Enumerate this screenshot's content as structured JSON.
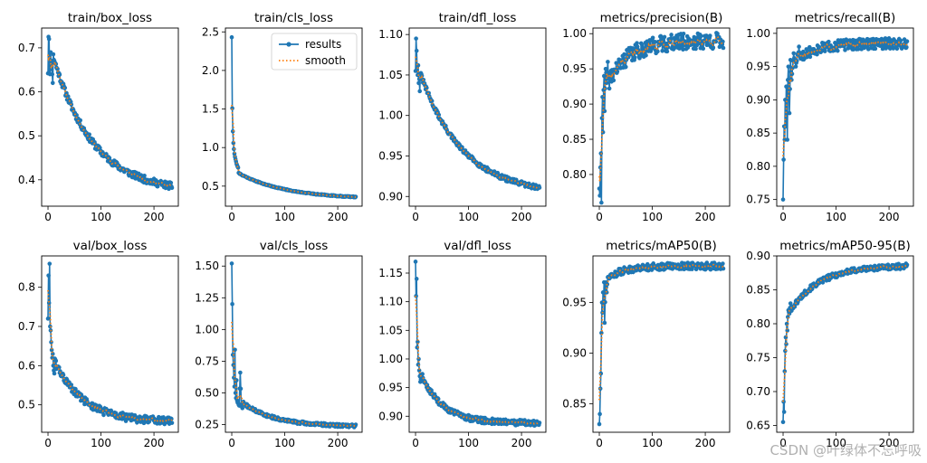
{
  "legend": {
    "results": "results",
    "smooth": "smooth"
  },
  "watermark": "CSDN @叶绿体不忘呼吸",
  "colors": {
    "results": "#1f77b4",
    "smooth": "#ff7f0e"
  },
  "chart_data": [
    {
      "type": "line",
      "title": "train/box_loss",
      "xlim": [
        -12,
        246
      ],
      "ylim": [
        0.34,
        0.745
      ],
      "xticks": [
        0,
        100,
        200
      ],
      "yticks": [
        0.4,
        0.5,
        0.6,
        0.7
      ],
      "yticklabels": [
        "0.4",
        "0.5",
        "0.6",
        "0.7"
      ],
      "curve": {
        "start": 0.725,
        "end": 0.37,
        "tau": 75,
        "noise": 0.008,
        "seed": 11,
        "n": 235,
        "head": [
          [
            0,
            0.642
          ],
          [
            1,
            0.725
          ],
          [
            2,
            0.72
          ],
          [
            3,
            0.65
          ],
          [
            4,
            0.64
          ],
          [
            5,
            0.69
          ],
          [
            6,
            0.66
          ],
          [
            7,
            0.67
          ],
          [
            8,
            0.64
          ],
          [
            9,
            0.62
          ]
        ]
      }
    },
    {
      "type": "line",
      "title": "train/cls_loss",
      "xlim": [
        -12,
        246
      ],
      "ylim": [
        0.24,
        2.55
      ],
      "xticks": [
        0,
        100,
        200
      ],
      "yticks": [
        0.5,
        1.0,
        1.5,
        2.0,
        2.5
      ],
      "yticklabels": [
        "0.5",
        "1.0",
        "1.5",
        "2.0",
        "2.5"
      ],
      "legend": "upper right",
      "curve": {
        "start": 0.72,
        "end": 0.33,
        "tau": 90,
        "noise": 0.006,
        "seed": 21,
        "n": 235,
        "head": [
          [
            0,
            2.43
          ],
          [
            1,
            1.51
          ],
          [
            2,
            1.21
          ],
          [
            3,
            1.06
          ],
          [
            4,
            0.98
          ],
          [
            5,
            0.92
          ],
          [
            6,
            0.88
          ],
          [
            7,
            0.85
          ],
          [
            8,
            0.82
          ],
          [
            9,
            0.79
          ],
          [
            10,
            0.77
          ],
          [
            12,
            0.74
          ]
        ]
      }
    },
    {
      "type": "line",
      "title": "train/dfl_loss",
      "xlim": [
        -12,
        246
      ],
      "ylim": [
        0.888,
        1.108
      ],
      "xticks": [
        0,
        100,
        200
      ],
      "yticks": [
        0.9,
        0.95,
        1.0,
        1.05,
        1.1
      ],
      "yticklabels": [
        "0.90",
        "0.95",
        "1.00",
        "1.05",
        "1.10"
      ],
      "curve": {
        "start": 1.07,
        "end": 0.902,
        "tau": 80,
        "noise": 0.003,
        "seed": 31,
        "n": 235,
        "head": [
          [
            0,
            1.055
          ],
          [
            1,
            1.095
          ],
          [
            2,
            1.08
          ],
          [
            3,
            1.06
          ],
          [
            4,
            1.05
          ],
          [
            5,
            1.062
          ],
          [
            6,
            1.04
          ],
          [
            7,
            1.045
          ],
          [
            8,
            1.03
          ]
        ]
      }
    },
    {
      "type": "line",
      "title": "metrics/precision(B)",
      "xlim": [
        -12,
        246
      ],
      "ylim": [
        0.755,
        1.008
      ],
      "xticks": [
        0,
        100,
        200
      ],
      "yticks": [
        0.8,
        0.85,
        0.9,
        0.95,
        1.0
      ],
      "yticklabels": [
        "0.80",
        "0.85",
        "0.90",
        "0.95",
        "1.00"
      ],
      "curve": {
        "start": 0.9,
        "end": 0.99,
        "tau": 40,
        "noise": 0.012,
        "seed": 41,
        "n": 235,
        "rising": true,
        "head": [
          [
            0,
            0.78
          ],
          [
            1,
            0.77
          ],
          [
            2,
            0.81
          ],
          [
            3,
            0.83
          ],
          [
            4,
            0.76
          ],
          [
            5,
            0.88
          ],
          [
            6,
            0.91
          ],
          [
            7,
            0.86
          ],
          [
            8,
            0.92
          ],
          [
            9,
            0.94
          ],
          [
            10,
            0.89
          ],
          [
            12,
            0.95
          ],
          [
            14,
            0.93
          ],
          [
            16,
            0.96
          ]
        ]
      }
    },
    {
      "type": "line",
      "title": "metrics/recall(B)",
      "xlim": [
        -12,
        246
      ],
      "ylim": [
        0.74,
        1.008
      ],
      "xticks": [
        0,
        100,
        200
      ],
      "yticks": [
        0.75,
        0.8,
        0.85,
        0.9,
        0.95,
        1.0
      ],
      "yticklabels": [
        "0.75",
        "0.80",
        "0.85",
        "0.90",
        "0.95",
        "1.00"
      ],
      "curve": {
        "start": 0.94,
        "end": 0.985,
        "tau": 40,
        "noise": 0.008,
        "seed": 51,
        "n": 235,
        "rising": true,
        "head": [
          [
            0,
            0.75
          ],
          [
            1,
            0.81
          ],
          [
            2,
            0.86
          ],
          [
            3,
            0.84
          ],
          [
            4,
            0.9
          ],
          [
            5,
            0.86
          ],
          [
            6,
            0.92
          ],
          [
            7,
            0.9
          ],
          [
            8,
            0.84
          ],
          [
            9,
            0.93
          ],
          [
            10,
            0.95
          ],
          [
            12,
            0.88
          ],
          [
            14,
            0.96
          ],
          [
            16,
            0.93
          ],
          [
            20,
            0.97
          ],
          [
            24,
            0.95
          ],
          [
            30,
            0.98
          ]
        ]
      }
    },
    {
      "type": "line",
      "title": "val/box_loss",
      "xlim": [
        -12,
        246
      ],
      "ylim": [
        0.43,
        0.88
      ],
      "xticks": [
        0,
        100,
        200
      ],
      "yticks": [
        0.5,
        0.6,
        0.7,
        0.8
      ],
      "yticklabels": [
        "0.5",
        "0.6",
        "0.7",
        "0.8"
      ],
      "curve": {
        "start": 0.65,
        "end": 0.455,
        "tau": 55,
        "noise": 0.01,
        "seed": 61,
        "n": 235,
        "head": [
          [
            0,
            0.72
          ],
          [
            1,
            0.83
          ],
          [
            2,
            0.76
          ],
          [
            3,
            0.86
          ],
          [
            4,
            0.7
          ],
          [
            5,
            0.69
          ],
          [
            6,
            0.66
          ],
          [
            7,
            0.64
          ],
          [
            8,
            0.62
          ],
          [
            9,
            0.63
          ],
          [
            10,
            0.6
          ],
          [
            12,
            0.58
          ]
        ]
      }
    },
    {
      "type": "line",
      "title": "val/cls_loss",
      "xlim": [
        -12,
        246
      ],
      "ylim": [
        0.19,
        1.58
      ],
      "xticks": [
        0,
        100,
        200
      ],
      "yticks": [
        0.25,
        0.5,
        0.75,
        1.0,
        1.25,
        1.5
      ],
      "yticklabels": [
        "0.25",
        "0.50",
        "0.75",
        "1.00",
        "1.25",
        "1.50"
      ],
      "curve": {
        "start": 0.5,
        "end": 0.235,
        "tau": 60,
        "noise": 0.012,
        "seed": 71,
        "n": 235,
        "head": [
          [
            0,
            1.52
          ],
          [
            1,
            1.2
          ],
          [
            2,
            0.8
          ],
          [
            3,
            0.72
          ],
          [
            4,
            0.62
          ],
          [
            5,
            0.55
          ],
          [
            6,
            0.84
          ],
          [
            7,
            0.5
          ],
          [
            8,
            0.46
          ],
          [
            9,
            0.6
          ],
          [
            10,
            0.44
          ],
          [
            12,
            0.42
          ],
          [
            14,
            0.4
          ],
          [
            16,
            0.66
          ],
          [
            18,
            0.41
          ],
          [
            20,
            0.38
          ]
        ]
      }
    },
    {
      "type": "line",
      "title": "val/dfl_loss",
      "xlim": [
        -12,
        246
      ],
      "ylim": [
        0.872,
        1.18
      ],
      "xticks": [
        0,
        100,
        200
      ],
      "yticks": [
        0.9,
        0.95,
        1.0,
        1.05,
        1.1,
        1.15
      ],
      "yticklabels": [
        "0.90",
        "0.95",
        "1.00",
        "1.05",
        "1.10",
        "1.15"
      ],
      "curve": {
        "start": 1.0,
        "end": 0.888,
        "tau": 40,
        "noise": 0.005,
        "seed": 81,
        "n": 235,
        "head": [
          [
            0,
            1.17
          ],
          [
            1,
            1.11
          ],
          [
            2,
            1.14
          ],
          [
            3,
            1.02
          ],
          [
            4,
            1.03
          ],
          [
            5,
            0.99
          ],
          [
            6,
            1.0
          ],
          [
            7,
            0.98
          ],
          [
            8,
            0.97
          ],
          [
            9,
            0.96
          ],
          [
            10,
            0.965
          ]
        ]
      }
    },
    {
      "type": "line",
      "title": "metrics/mAP50(B)",
      "xlim": [
        -12,
        246
      ],
      "ylim": [
        0.822,
        0.996
      ],
      "xticks": [
        0,
        100,
        200
      ],
      "yticks": [
        0.85,
        0.9,
        0.95
      ],
      "yticklabels": [
        "0.85",
        "0.90",
        "0.95"
      ],
      "curve": {
        "start": 0.965,
        "end": 0.986,
        "tau": 30,
        "noise": 0.0035,
        "seed": 91,
        "n": 235,
        "rising": true,
        "head": [
          [
            0,
            0.83
          ],
          [
            1,
            0.84
          ],
          [
            2,
            0.865
          ],
          [
            3,
            0.88
          ],
          [
            4,
            0.92
          ],
          [
            5,
            0.95
          ],
          [
            6,
            0.94
          ],
          [
            7,
            0.96
          ],
          [
            8,
            0.95
          ],
          [
            9,
            0.97
          ],
          [
            10,
            0.93
          ],
          [
            12,
            0.97
          ],
          [
            14,
            0.96
          ],
          [
            16,
            0.975
          ]
        ]
      }
    },
    {
      "type": "line",
      "title": "metrics/mAP50-95(B)",
      "xlim": [
        -12,
        246
      ],
      "ylim": [
        0.64,
        0.9
      ],
      "xticks": [
        0,
        100,
        200
      ],
      "yticks": [
        0.65,
        0.7,
        0.75,
        0.8,
        0.85,
        0.9
      ],
      "yticklabels": [
        "0.65",
        "0.70",
        "0.75",
        "0.80",
        "0.85",
        "0.90"
      ],
      "curve": {
        "start": 0.8,
        "end": 0.886,
        "tau": 55,
        "noise": 0.004,
        "seed": 101,
        "n": 235,
        "rising": true,
        "head": [
          [
            0,
            0.655
          ],
          [
            1,
            0.685
          ],
          [
            2,
            0.67
          ],
          [
            3,
            0.73
          ],
          [
            4,
            0.76
          ],
          [
            5,
            0.78
          ],
          [
            6,
            0.77
          ],
          [
            7,
            0.8
          ],
          [
            8,
            0.79
          ],
          [
            9,
            0.81
          ],
          [
            10,
            0.82
          ],
          [
            12,
            0.815
          ],
          [
            14,
            0.83
          ]
        ]
      }
    }
  ]
}
